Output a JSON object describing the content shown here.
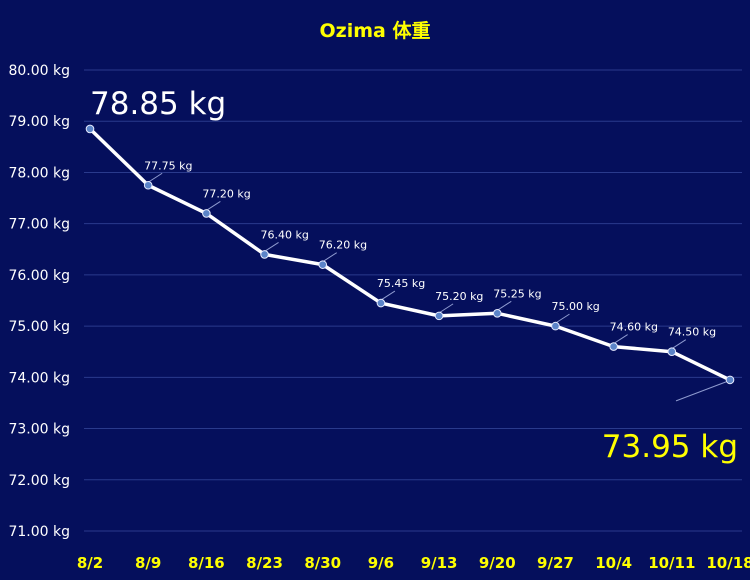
{
  "chart_data": {
    "type": "line",
    "title": "Ozima 体重",
    "categories": [
      "8/2",
      "8/9",
      "8/16",
      "8/23",
      "8/30",
      "9/6",
      "9/13",
      "9/20",
      "9/27",
      "10/4",
      "10/11",
      "10/18"
    ],
    "series": [
      {
        "values": [
          78.85,
          77.75,
          77.2,
          76.4,
          76.2,
          75.45,
          75.2,
          75.25,
          75.0,
          74.6,
          74.5,
          73.95
        ],
        "labels": [
          "78.85 kg",
          "77.75 kg",
          "77.20 kg",
          "76.40 kg",
          "76.20 kg",
          "75.45 kg",
          "75.20 kg",
          "75.25 kg",
          "75.00 kg",
          "74.60 kg",
          "74.50 kg",
          "73.95 kg"
        ]
      }
    ],
    "ylim": [
      71,
      80
    ],
    "yticks": [
      80,
      79,
      78,
      77,
      76,
      75,
      74,
      73,
      72,
      71
    ],
    "ytick_labels": [
      "80.00 kg",
      "79.00 kg",
      "78.00 kg",
      "77.00 kg",
      "76.00 kg",
      "75.00 kg",
      "74.00 kg",
      "73.00 kg",
      "72.00 kg",
      "71.00 kg"
    ],
    "grid": true,
    "legend": "none",
    "colors": {
      "background": "#050f5c",
      "title": "#ffff00",
      "line": "#ffffff",
      "marker": "#5b84c8",
      "x_tick_labels": "#ffff00",
      "last_label": "#ffff00"
    }
  }
}
